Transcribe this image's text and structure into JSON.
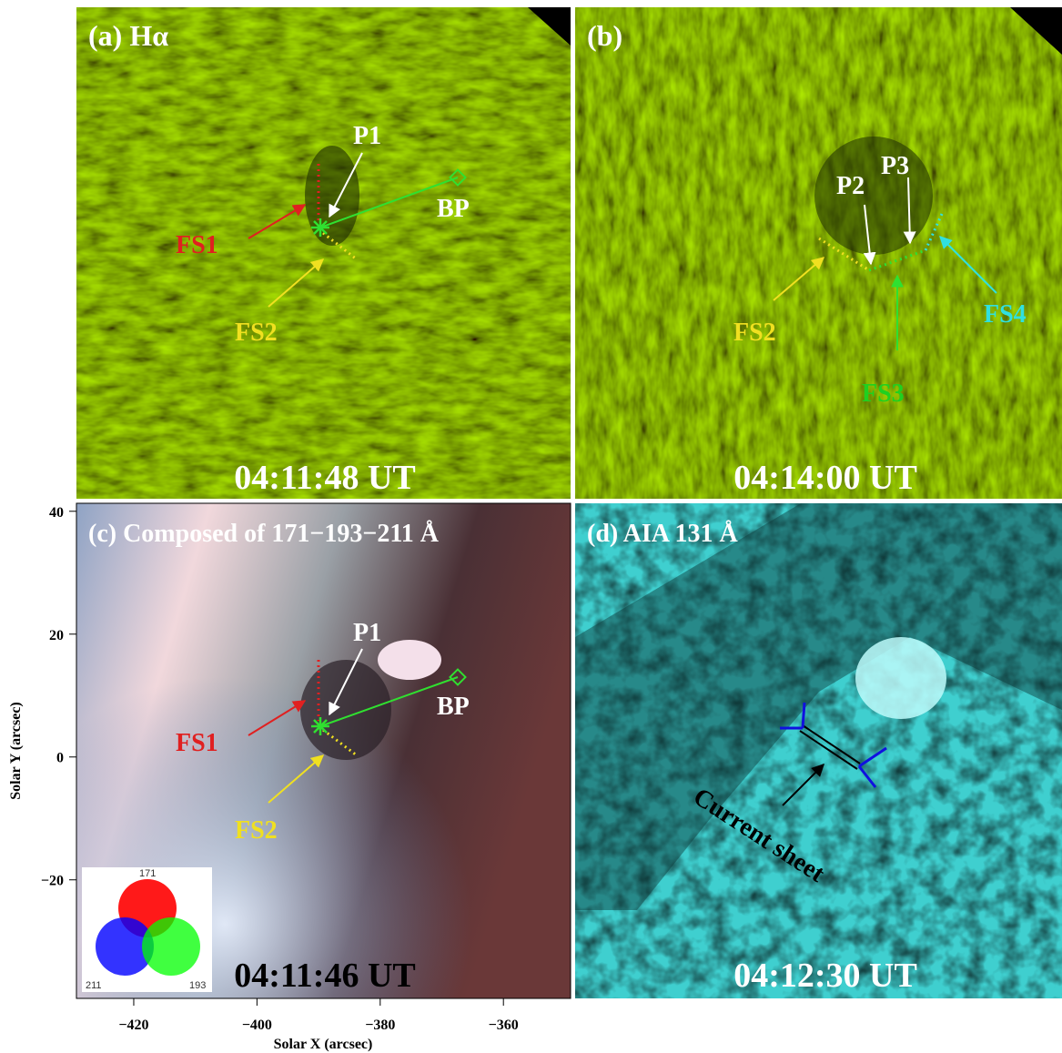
{
  "panels": [
    {
      "label": "(a) Hα",
      "time": "04:11:48 UT",
      "annotations": [
        "P1",
        "BP",
        "FS1",
        "FS2"
      ]
    },
    {
      "label": "(b)",
      "time": "04:14:00 UT",
      "annotations": [
        "P2",
        "P3",
        "FS2",
        "FS4",
        "FS3"
      ]
    },
    {
      "label": "(c) Composed of 171−193−211 Å",
      "time": "04:11:46 UT",
      "annotations": [
        "P1",
        "BP",
        "FS1",
        "FS2"
      ],
      "inset": [
        "171",
        "193",
        "211"
      ]
    },
    {
      "label": "(d) AIA 131 Å",
      "time": "04:12:30 UT",
      "annotations": [
        "Current sheet"
      ]
    }
  ],
  "axes": {
    "xlabel": "Solar X (arcsec)",
    "ylabel": "Solar Y (arcsec)",
    "xlim": [
      -429.3,
      -349.1
    ],
    "ylim": [
      -39.3,
      41.3
    ],
    "xticks": [
      {
        "value": -420,
        "label": "−420"
      },
      {
        "value": -400,
        "label": "−400"
      },
      {
        "value": -380,
        "label": "−380"
      },
      {
        "value": -360,
        "label": "−360"
      }
    ],
    "yticks": [
      {
        "value": -20,
        "label": "−20"
      },
      0,
      20,
      40
    ]
  }
}
